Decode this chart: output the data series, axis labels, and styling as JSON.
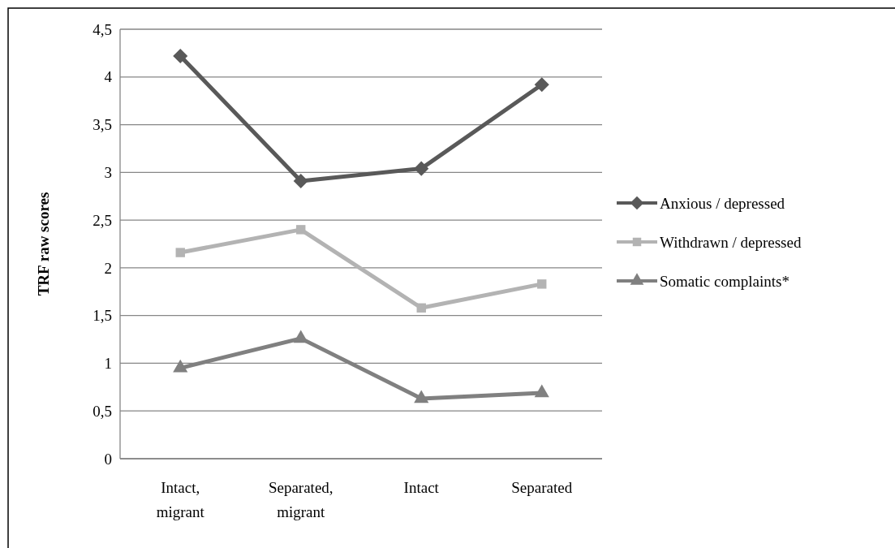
{
  "chart_data": {
    "type": "line",
    "ylabel": "TRF raw scores",
    "categories": [
      "Intact,\nmigrant",
      "Separated,\nmigrant",
      "Intact",
      "Separated"
    ],
    "series": [
      {
        "name": "Anxious / depressed",
        "color": "#595959",
        "marker": "diamond",
        "values": [
          4.22,
          2.91,
          3.04,
          3.92
        ]
      },
      {
        "name": "Withdrawn / depressed",
        "color": "#b3b3b3",
        "marker": "square",
        "values": [
          2.16,
          2.4,
          1.58,
          1.83
        ]
      },
      {
        "name": "Somatic complaints*",
        "color": "#808080",
        "marker": "triangle",
        "values": [
          0.95,
          1.26,
          0.63,
          0.69
        ]
      }
    ],
    "ylim": [
      0,
      4.5
    ],
    "yticks": [
      0,
      {
        "value": 0.5,
        "label": "0,5"
      },
      1,
      {
        "value": 1.5,
        "label": "1,5"
      },
      2,
      {
        "value": 2.5,
        "label": "2,5"
      },
      3,
      {
        "value": 3.5,
        "label": "3,5"
      },
      4,
      {
        "value": 4.5,
        "label": "4,5"
      }
    ],
    "grid": "y",
    "legend": "right",
    "line_style": "solid"
  }
}
